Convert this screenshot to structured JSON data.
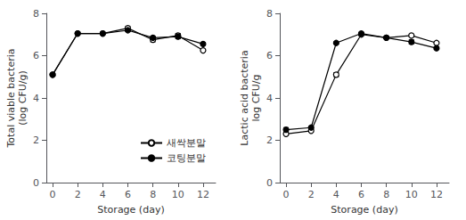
{
  "chart_data": [
    {
      "type": "line",
      "xlabel": "Storage (day)",
      "ylabel": "Total viable bacteria\n(log CFU/g)",
      "x": [
        0,
        2,
        4,
        6,
        8,
        10,
        12
      ],
      "series": [
        {
          "name": "새싹분말",
          "color": "#000000",
          "marker": "circle_open",
          "values": [
            5.1,
            7.05,
            7.05,
            7.3,
            6.75,
            6.95,
            6.25
          ],
          "yerr": [
            0.0,
            0.0,
            0.0,
            0.07,
            0.1,
            0.1,
            0.05
          ]
        },
        {
          "name": "코팅분말",
          "color": "#000000",
          "marker": "circle",
          "values": [
            5.1,
            7.05,
            7.05,
            7.2,
            6.85,
            6.9,
            6.55
          ],
          "yerr": [
            0.0,
            0.0,
            0.0,
            0.05,
            0.05,
            0.1,
            0.05
          ]
        }
      ],
      "xlim": [
        -0.5,
        13
      ],
      "xticks": [
        0,
        2,
        4,
        6,
        8,
        10,
        12
      ],
      "ylim": [
        0,
        8
      ],
      "yticks": [
        0,
        2,
        4,
        6,
        8
      ],
      "grid": false,
      "legend": "lower right"
    },
    {
      "type": "line",
      "xlabel": "Storage (day)",
      "ylabel": "Lactic acid bacteria\nlog CFU/g",
      "x": [
        0,
        2,
        4,
        6,
        8,
        10,
        12
      ],
      "series": [
        {
          "name": "새싹분말",
          "color": "#000000",
          "marker": "circle_open",
          "values": [
            2.3,
            2.45,
            5.1,
            7.0,
            6.85,
            6.95,
            6.6
          ],
          "yerr": [
            0.05,
            0.05,
            0.1,
            0.05,
            0.05,
            0.05,
            0.05
          ]
        },
        {
          "name": "코팅분말",
          "color": "#000000",
          "marker": "circle",
          "values": [
            2.5,
            2.6,
            6.6,
            7.05,
            6.85,
            6.65,
            6.35
          ],
          "yerr": [
            0.1,
            0.05,
            0.05,
            0.05,
            0.05,
            0.1,
            0.05
          ]
        }
      ],
      "xlim": [
        -0.5,
        13
      ],
      "xticks": [
        0,
        2,
        4,
        6,
        8,
        10,
        12
      ],
      "ylim": [
        0,
        8
      ],
      "yticks": [
        0,
        2,
        4,
        6,
        8
      ],
      "grid": false
    }
  ]
}
